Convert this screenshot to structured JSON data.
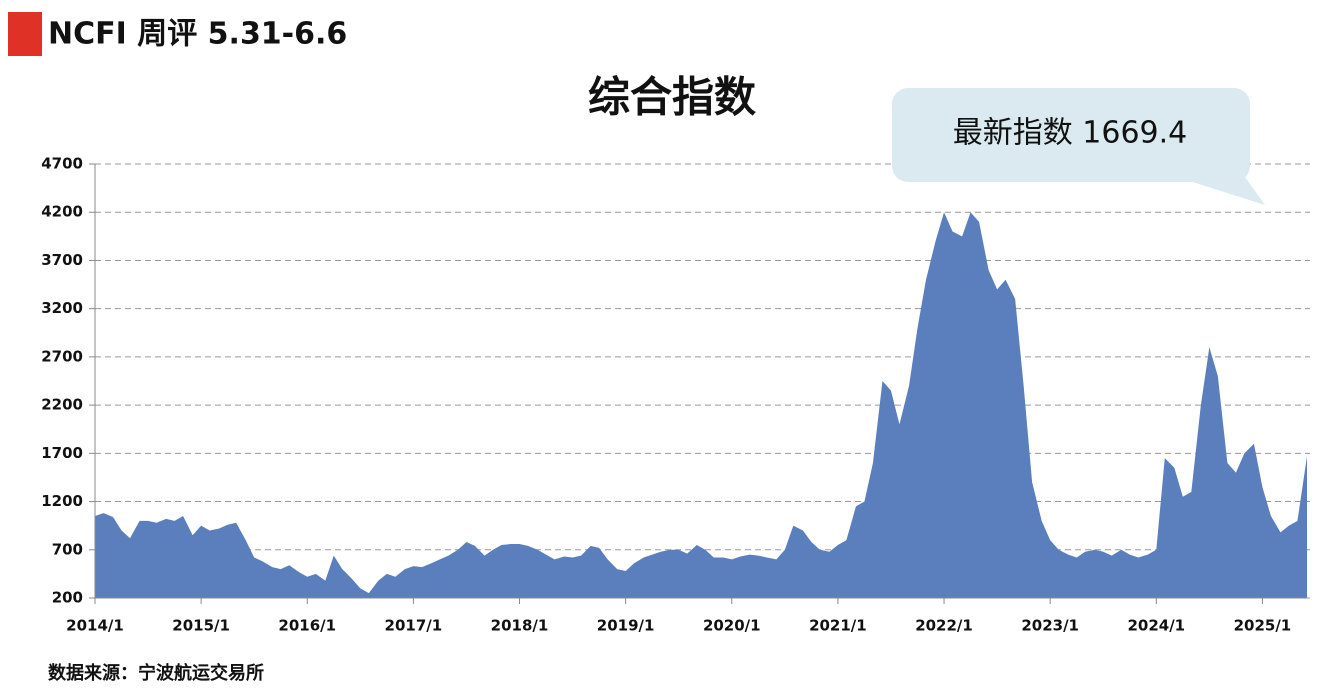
{
  "header": "NCFI 周评 5.31-6.6",
  "chart_data": {
    "type": "area",
    "title": "综合指数",
    "annotation": "最新指数 1669.4",
    "source": "数据来源：宁波航运交易所",
    "color": "#5b7fbc",
    "grid": true,
    "x": [
      2014,
      2014.08,
      2014.17,
      2014.25,
      2014.33,
      2014.42,
      2014.5,
      2014.58,
      2014.67,
      2014.75,
      2014.83,
      2014.92,
      2015,
      2015.08,
      2015.17,
      2015.25,
      2015.33,
      2015.42,
      2015.5,
      2015.58,
      2015.67,
      2015.75,
      2015.83,
      2015.92,
      2016,
      2016.08,
      2016.17,
      2016.25,
      2016.33,
      2016.42,
      2016.5,
      2016.58,
      2016.67,
      2016.75,
      2016.83,
      2016.92,
      2017,
      2017.08,
      2017.17,
      2017.25,
      2017.33,
      2017.42,
      2017.5,
      2017.58,
      2017.67,
      2017.75,
      2017.83,
      2017.92,
      2018,
      2018.08,
      2018.17,
      2018.25,
      2018.33,
      2018.42,
      2018.5,
      2018.58,
      2018.67,
      2018.75,
      2018.83,
      2018.92,
      2019,
      2019.08,
      2019.17,
      2019.25,
      2019.33,
      2019.42,
      2019.5,
      2019.58,
      2019.67,
      2019.75,
      2019.83,
      2019.92,
      2020,
      2020.08,
      2020.17,
      2020.25,
      2020.33,
      2020.42,
      2020.5,
      2020.58,
      2020.67,
      2020.75,
      2020.83,
      2020.92,
      2021,
      2021.08,
      2021.17,
      2021.25,
      2021.33,
      2021.42,
      2021.5,
      2021.58,
      2021.67,
      2021.75,
      2021.83,
      2021.92,
      2022,
      2022.08,
      2022.17,
      2022.25,
      2022.33,
      2022.42,
      2022.5,
      2022.58,
      2022.67,
      2022.75,
      2022.83,
      2022.92,
      2023,
      2023.08,
      2023.17,
      2023.25,
      2023.33,
      2023.42,
      2023.5,
      2023.58,
      2023.67,
      2023.75,
      2023.83,
      2023.92,
      2024,
      2024.08,
      2024.17,
      2024.25,
      2024.33,
      2024.42,
      2024.5,
      2024.58,
      2024.67,
      2024.75,
      2024.83,
      2024.92,
      2025,
      2025.08,
      2025.17,
      2025.25,
      2025.33,
      2025.42
    ],
    "values": [
      1050,
      1080,
      1040,
      900,
      820,
      1000,
      1000,
      980,
      1020,
      1000,
      1050,
      850,
      950,
      900,
      920,
      960,
      980,
      800,
      620,
      580,
      520,
      500,
      540,
      470,
      420,
      450,
      380,
      640,
      500,
      400,
      300,
      250,
      380,
      450,
      420,
      500,
      530,
      520,
      560,
      600,
      640,
      700,
      780,
      740,
      640,
      700,
      750,
      760,
      760,
      740,
      700,
      650,
      600,
      630,
      620,
      640,
      740,
      720,
      600,
      500,
      480,
      560,
      620,
      650,
      680,
      700,
      700,
      660,
      750,
      700,
      620,
      620,
      600,
      630,
      650,
      640,
      620,
      600,
      700,
      950,
      900,
      780,
      700,
      680,
      750,
      800,
      1150,
      1200,
      1600,
      2450,
      2350,
      2000,
      2400,
      3000,
      3500,
      3900,
      4200,
      4000,
      3950,
      4200,
      4100,
      3600,
      3400,
      3500,
      3300,
      2400,
      1400,
      1000,
      800,
      700,
      650,
      620,
      680,
      700,
      680,
      640,
      700,
      650,
      620,
      650,
      700,
      1650,
      1550,
      1250,
      1300,
      2200,
      2800,
      2500,
      1600,
      1500,
      1700,
      1800,
      1350,
      1050,
      880,
      950,
      1000,
      1669.4
    ],
    "xlim": [
      2014,
      2025.42
    ],
    "xticks": [
      {
        "value": 2014,
        "label": "2014/1"
      },
      {
        "value": 2015,
        "label": "2015/1"
      },
      {
        "value": 2016,
        "label": "2016/1"
      },
      {
        "value": 2017,
        "label": "2017/1"
      },
      {
        "value": 2018,
        "label": "2018/1"
      },
      {
        "value": 2019,
        "label": "2019/1"
      },
      {
        "value": 2020,
        "label": "2020/1"
      },
      {
        "value": 2021,
        "label": "2021/1"
      },
      {
        "value": 2022,
        "label": "2022/1"
      },
      {
        "value": 2023,
        "label": "2023/1"
      },
      {
        "value": 2024,
        "label": "2024/1"
      },
      {
        "value": 2025,
        "label": "2025/1"
      }
    ],
    "ylim": [
      200,
      4700
    ],
    "yticks": [
      200,
      700,
      1200,
      1700,
      2200,
      2700,
      3200,
      3700,
      4200,
      4700
    ]
  }
}
